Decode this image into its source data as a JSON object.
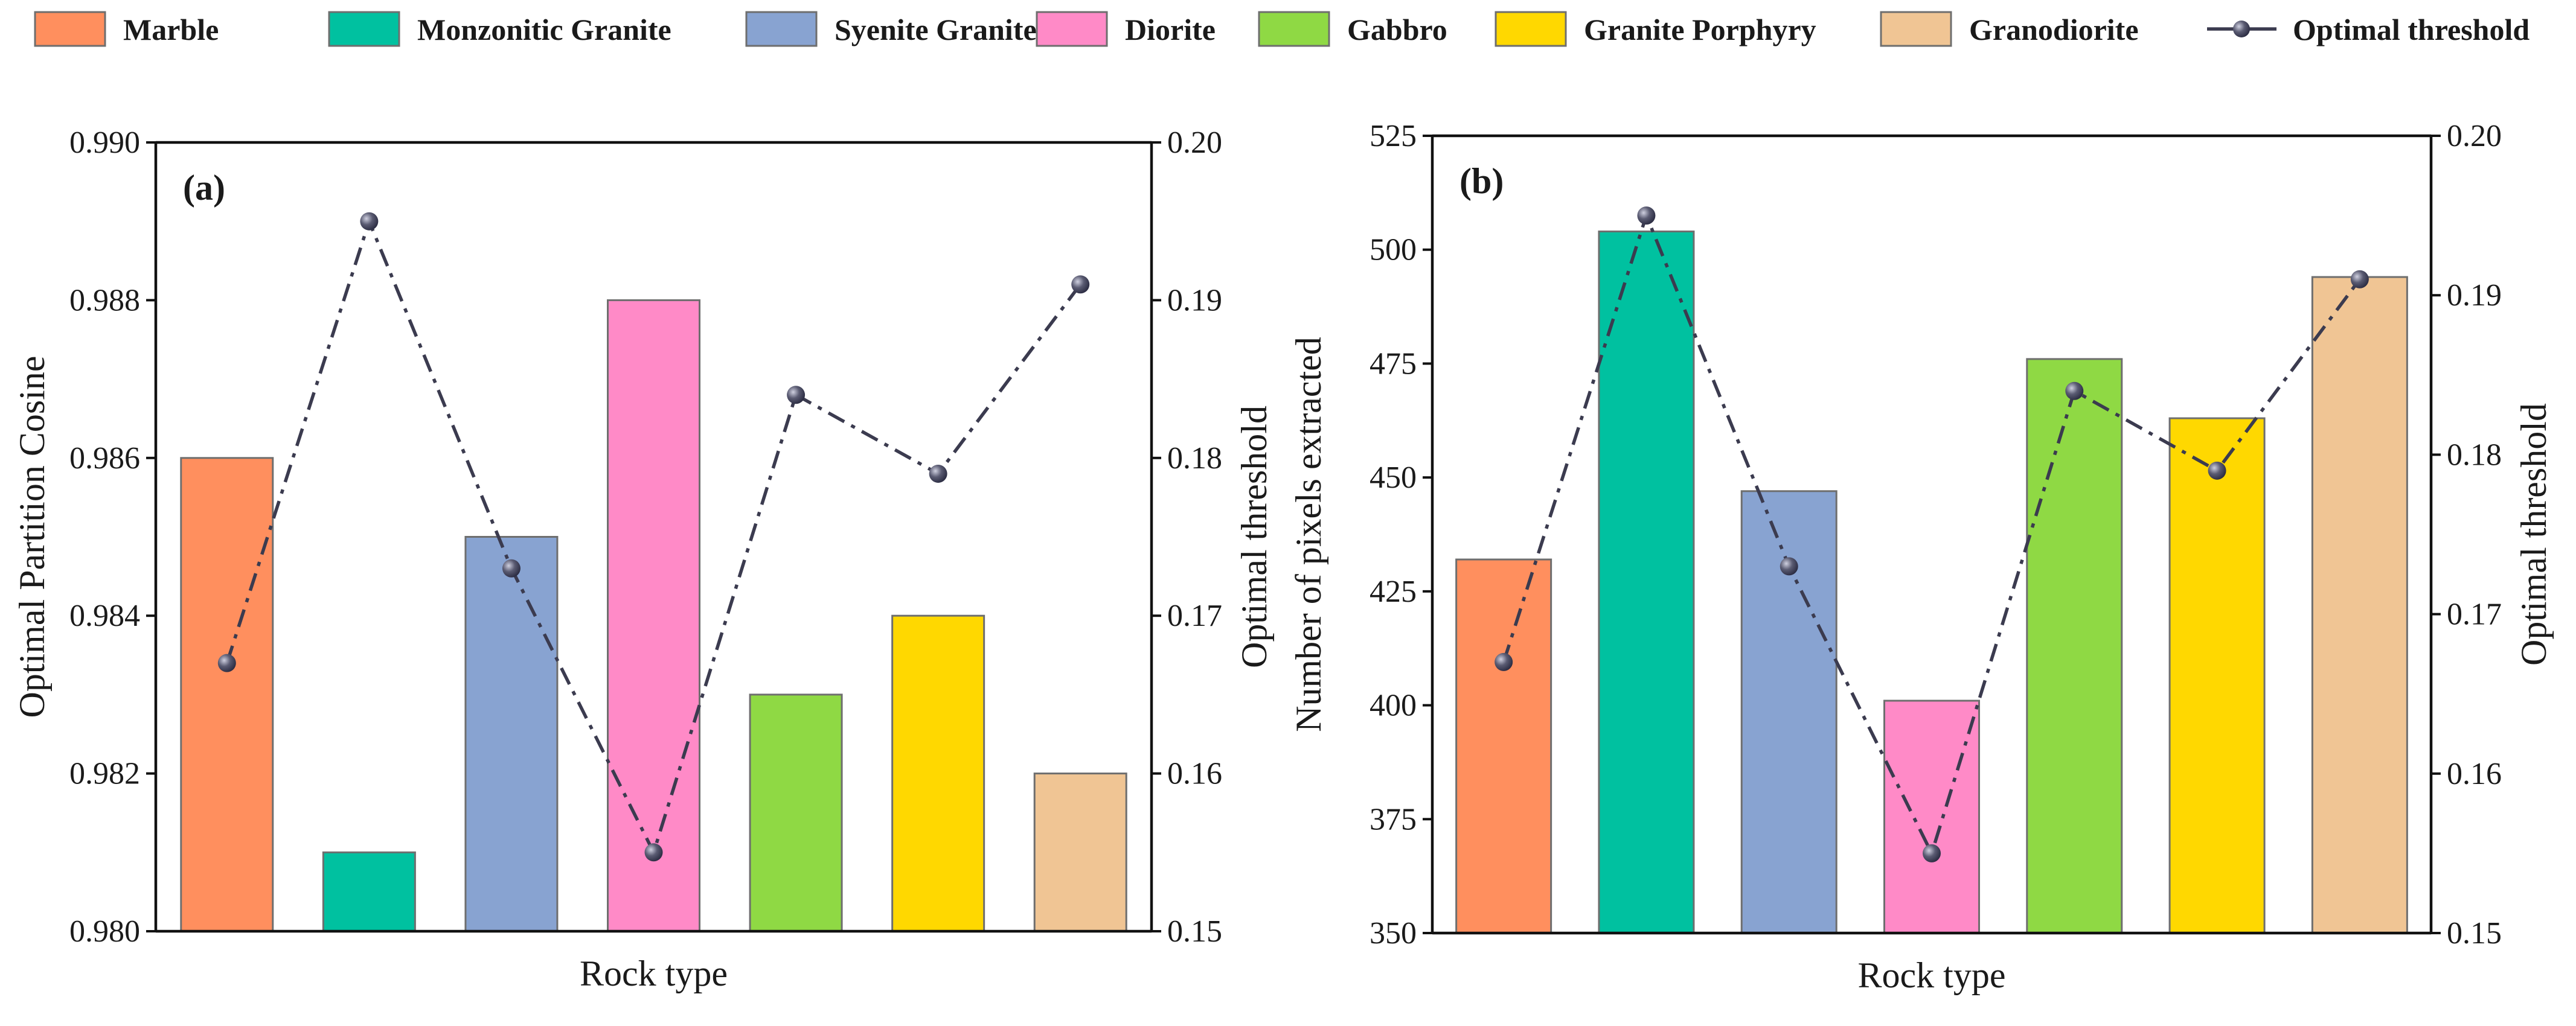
{
  "legend": {
    "items": [
      {
        "label": "Marble",
        "color": "#FF8F5E"
      },
      {
        "label": "Monzonitic Granite",
        "color": "#00C1A0"
      },
      {
        "label": "Syenite Granite",
        "color": "#88A3D1"
      },
      {
        "label": "Diorite",
        "color": "#FF8AC7"
      },
      {
        "label": "Gabbro",
        "color": "#8FD944"
      },
      {
        "label": "Granite Porphyry",
        "color": "#FFD800"
      },
      {
        "label": "Granodiorite",
        "color": "#F0C594"
      }
    ],
    "line_label": "Optimal threshold",
    "line_color": "#3b3b4f",
    "marker_icon": "sphere-marker-icon"
  },
  "chart_data": [
    {
      "type": "bar",
      "panel_label": "(a)",
      "categories": [
        "Marble",
        "Monzonitic Granite",
        "Syenite Granite",
        "Diorite",
        "Gabbro",
        "Granite Porphyry",
        "Granodiorite"
      ],
      "colors": [
        "#FF8F5E",
        "#00C1A0",
        "#88A3D1",
        "#FF8AC7",
        "#8FD944",
        "#FFD800",
        "#F0C594"
      ],
      "values": [
        0.986,
        0.981,
        0.985,
        0.988,
        0.983,
        0.984,
        0.982
      ],
      "xlabel": "Rock type",
      "ylabel": "Optimal Partition Cosine",
      "ylim": [
        0.98,
        0.99
      ],
      "yticks": [
        "0.980",
        "0.982",
        "0.984",
        "0.986",
        "0.988",
        "0.990"
      ],
      "y2label": "Optimal threshold",
      "y2lim": [
        0.15,
        0.2
      ],
      "y2ticks": [
        "0.15",
        "0.16",
        "0.17",
        "0.18",
        "0.19",
        "0.20"
      ],
      "threshold": {
        "name": "Optimal threshold",
        "type": "line",
        "values": [
          0.167,
          0.195,
          0.173,
          0.155,
          0.184,
          0.179,
          0.191
        ]
      }
    },
    {
      "type": "bar",
      "panel_label": "(b)",
      "categories": [
        "Marble",
        "Monzonitic Granite",
        "Syenite Granite",
        "Diorite",
        "Gabbro",
        "Granite Porphyry",
        "Granodiorite"
      ],
      "colors": [
        "#FF8F5E",
        "#00C1A0",
        "#88A3D1",
        "#FF8AC7",
        "#8FD944",
        "#FFD800",
        "#F0C594"
      ],
      "values": [
        432,
        504,
        447,
        401,
        476,
        463,
        494
      ],
      "xlabel": "Rock type",
      "ylabel": "Number of pixels extracted",
      "ylim": [
        350,
        525
      ],
      "yticks": [
        "350",
        "375",
        "400",
        "425",
        "450",
        "475",
        "500",
        "525"
      ],
      "y2label": "Optimal threshold",
      "y2lim": [
        0.15,
        0.2
      ],
      "y2ticks": [
        "0.15",
        "0.16",
        "0.17",
        "0.18",
        "0.19",
        "0.20"
      ],
      "threshold": {
        "name": "Optimal threshold",
        "type": "line",
        "values": [
          0.167,
          0.195,
          0.173,
          0.155,
          0.184,
          0.179,
          0.191
        ]
      }
    }
  ]
}
